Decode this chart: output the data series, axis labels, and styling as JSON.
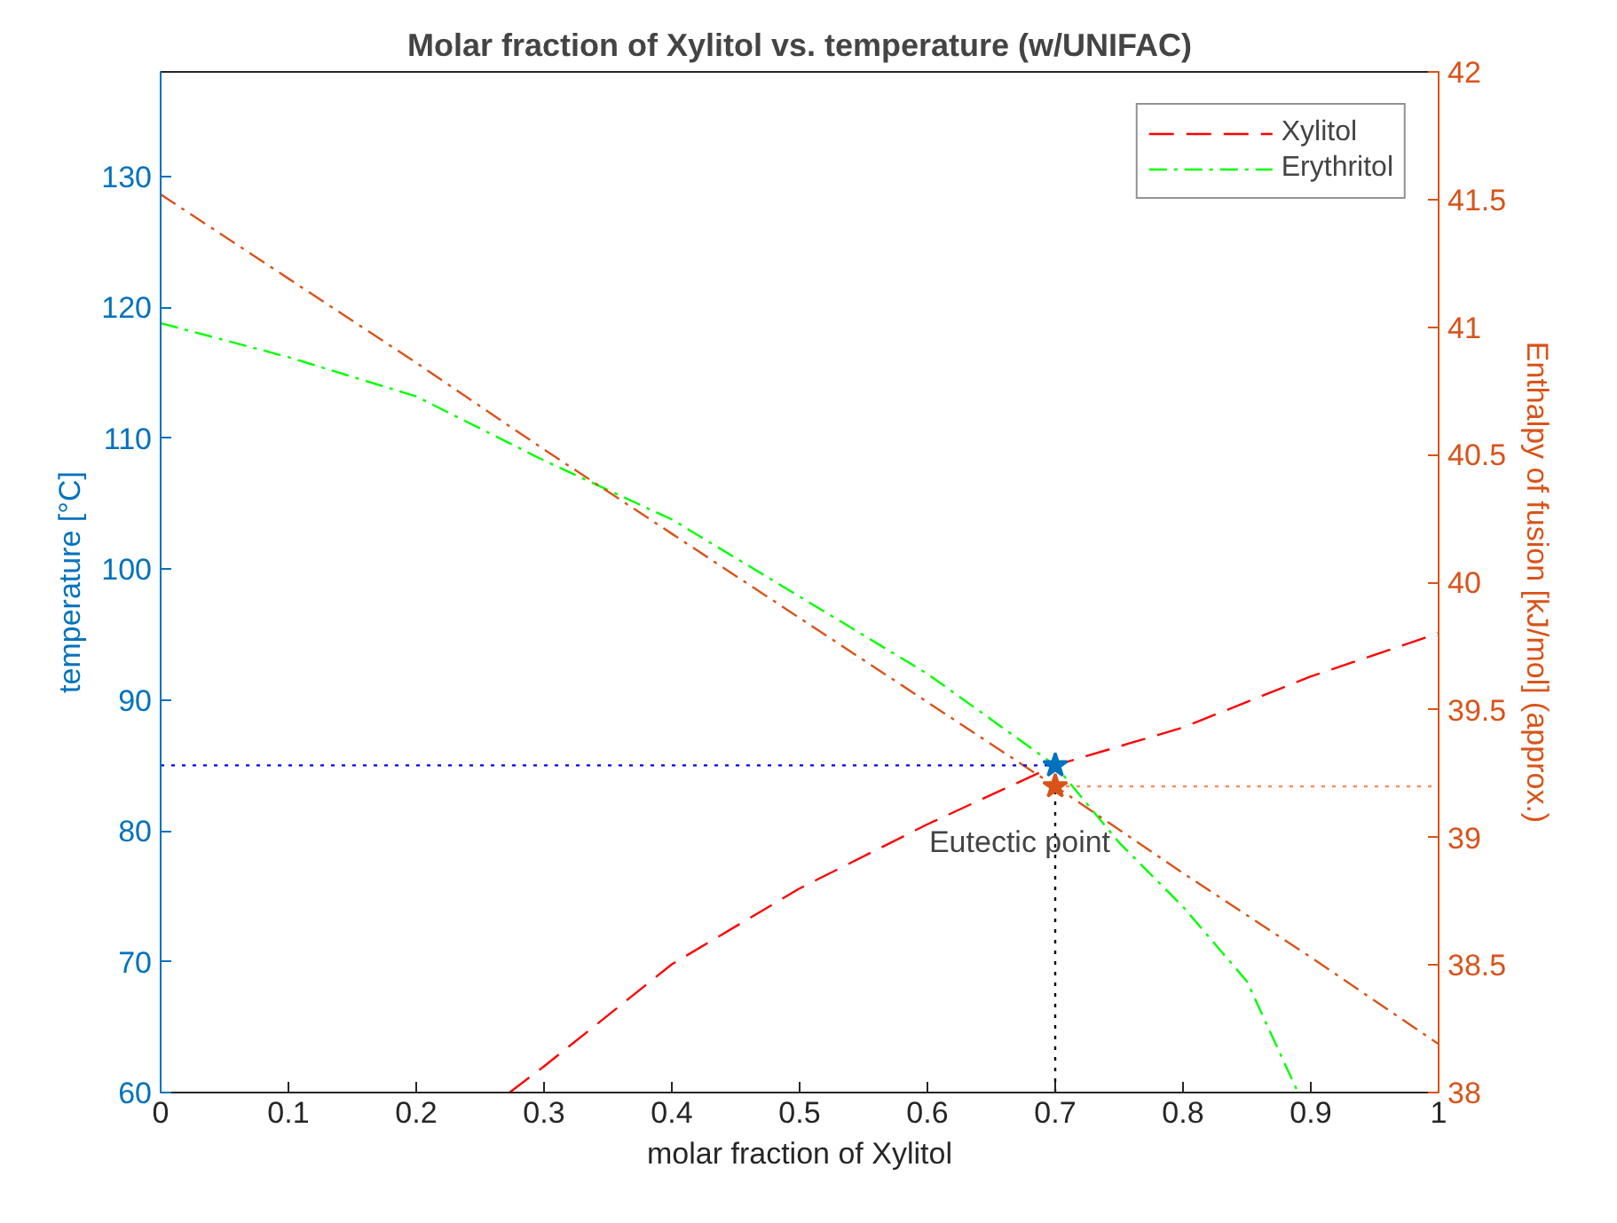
{
  "chart_data": {
    "type": "line",
    "title": "Molar fraction of Xylitol vs. temperature (w/UNIFAC)",
    "xlabel": "molar fraction of Xylitol",
    "ylabel": "temperature [°C]",
    "y2label": "Enthalpy of fusion [kJ/mol] (approx.)",
    "xlim": [
      0,
      1
    ],
    "xticks": [
      0,
      0.1,
      0.2,
      0.3,
      0.4,
      0.5,
      0.6,
      0.7,
      0.8,
      0.9,
      1
    ],
    "ylim": [
      60,
      138
    ],
    "yticks": [
      60,
      70,
      80,
      90,
      100,
      110,
      120,
      130
    ],
    "y2lim": [
      38,
      42
    ],
    "y2ticks": [
      38,
      38.5,
      39,
      39.5,
      40,
      40.5,
      41,
      41.5,
      42
    ],
    "grid": false,
    "legend": "top right",
    "marker": "none",
    "annotations": [
      {
        "text": "Eutectic point",
        "x": 0.7,
        "y": 85
      }
    ],
    "series": [
      {
        "name": "Xylitol",
        "color": "#ff0000",
        "line_style": "dashed",
        "x": [
          0.273,
          0.3,
          0.4,
          0.5,
          0.6,
          0.7,
          0.8,
          0.9,
          1
        ],
        "values": [
          60,
          62,
          69.8,
          75.6,
          80.5,
          85,
          87.9,
          91.8,
          95.1
        ]
      },
      {
        "name": "Erythritol",
        "color": "#00ff00",
        "line_style": "dashdot",
        "x": [
          0,
          0.1,
          0.2,
          0.3,
          0.4,
          0.5,
          0.6,
          0.7,
          0.75,
          0.8,
          0.85,
          0.89
        ],
        "values": [
          118.8,
          116.2,
          113.2,
          108.3,
          103.8,
          97.9,
          92,
          85,
          79.1,
          74.2,
          68.5,
          60
        ]
      },
      {
        "color": "#d95319",
        "line_style": "dashdot",
        "axis": "y2",
        "x": [
          0,
          0.1,
          0.2,
          0.3,
          0.4,
          0.5,
          0.6,
          0.7,
          0.8,
          0.9,
          1
        ],
        "values": [
          41.52,
          41.19,
          40.86,
          40.52,
          40.19,
          39.86,
          39.53,
          39.2,
          38.86,
          38.53,
          38.19
        ]
      },
      {
        "color": "#0000ff",
        "line_style": "dotted",
        "x": [
          0,
          0.7
        ],
        "values": [
          85,
          85
        ]
      },
      {
        "color": "#ff8c5a",
        "line_style": "dotted",
        "axis": "y2",
        "x": [
          0.7,
          1
        ],
        "values": [
          39.2,
          39.2
        ]
      },
      {
        "color": "#000000",
        "line_style": "dotted",
        "x": [
          0.7,
          0.7
        ],
        "values": [
          60,
          83.6
        ]
      },
      {
        "type": "scatter",
        "marker": "star",
        "color": "#0072bd",
        "x": [
          0.7
        ],
        "values": [
          85
        ]
      },
      {
        "type": "scatter",
        "marker": "star",
        "color": "#d95319",
        "axis": "y2",
        "x": [
          0.7
        ],
        "values": [
          39.2
        ]
      }
    ]
  }
}
